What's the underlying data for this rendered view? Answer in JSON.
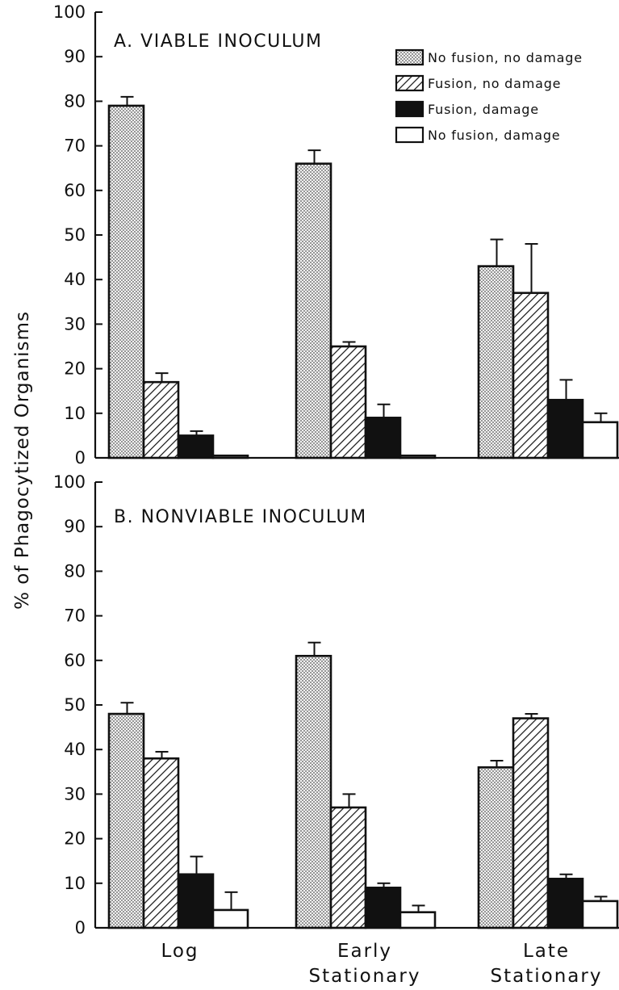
{
  "chart_data": [
    {
      "type": "bar",
      "panel": "A",
      "title": "A. VIABLE INOCULUM",
      "categories": [
        "Log",
        "Early Stationary",
        "Late Stationary"
      ],
      "ylim": [
        0,
        100
      ],
      "yticks": [
        "0",
        "10",
        "20",
        "30",
        "40",
        "50",
        "60",
        "70",
        "80",
        "90",
        "100"
      ],
      "ylabel": "% of Phagocytized Organisms",
      "legend_position": "top-right",
      "series": [
        {
          "name": "No fusion, no damage",
          "pattern": "dotted",
          "values": [
            79,
            66,
            43
          ],
          "errors": [
            2,
            3,
            6
          ]
        },
        {
          "name": "Fusion, no damage",
          "pattern": "hatched",
          "values": [
            17,
            25,
            37
          ],
          "errors": [
            2,
            1,
            11
          ]
        },
        {
          "name": "Fusion, damage",
          "pattern": "solid",
          "values": [
            5,
            9,
            13
          ],
          "errors": [
            1,
            3,
            4.5
          ]
        },
        {
          "name": "No fusion, damage",
          "pattern": "open",
          "values": [
            0.5,
            0.5,
            8
          ],
          "errors": [
            0,
            0,
            2
          ]
        }
      ]
    },
    {
      "type": "bar",
      "panel": "B",
      "title": "B. NONVIABLE INOCULUM",
      "categories": [
        "Log",
        "Early Stationary",
        "Late Stationary"
      ],
      "ylim": [
        0,
        100
      ],
      "yticks": [
        "0",
        "10",
        "20",
        "30",
        "40",
        "50",
        "60",
        "70",
        "80",
        "90",
        "100"
      ],
      "ylabel": "% of Phagocytized Organisms",
      "series": [
        {
          "name": "No fusion, no damage",
          "pattern": "dotted",
          "values": [
            48,
            61,
            36
          ],
          "errors": [
            2.5,
            3,
            1.5
          ]
        },
        {
          "name": "Fusion, no damage",
          "pattern": "hatched",
          "values": [
            38,
            27,
            47
          ],
          "errors": [
            1.5,
            3,
            1
          ]
        },
        {
          "name": "Fusion, damage",
          "pattern": "solid",
          "values": [
            12,
            9,
            11
          ],
          "errors": [
            4,
            1,
            1
          ]
        },
        {
          "name": "No fusion, damage",
          "pattern": "open",
          "values": [
            4,
            3.5,
            6
          ],
          "errors": [
            4,
            1.5,
            1
          ]
        }
      ]
    }
  ],
  "axis": {
    "ylabel": "% of Phagocytized Organisms",
    "categories": [
      [
        "Log"
      ],
      [
        "Early",
        "Stationary"
      ],
      [
        "Late",
        "Stationary"
      ]
    ]
  },
  "legend": [
    "No fusion, no damage",
    "Fusion, no damage",
    "Fusion, damage",
    "No fusion, damage"
  ]
}
